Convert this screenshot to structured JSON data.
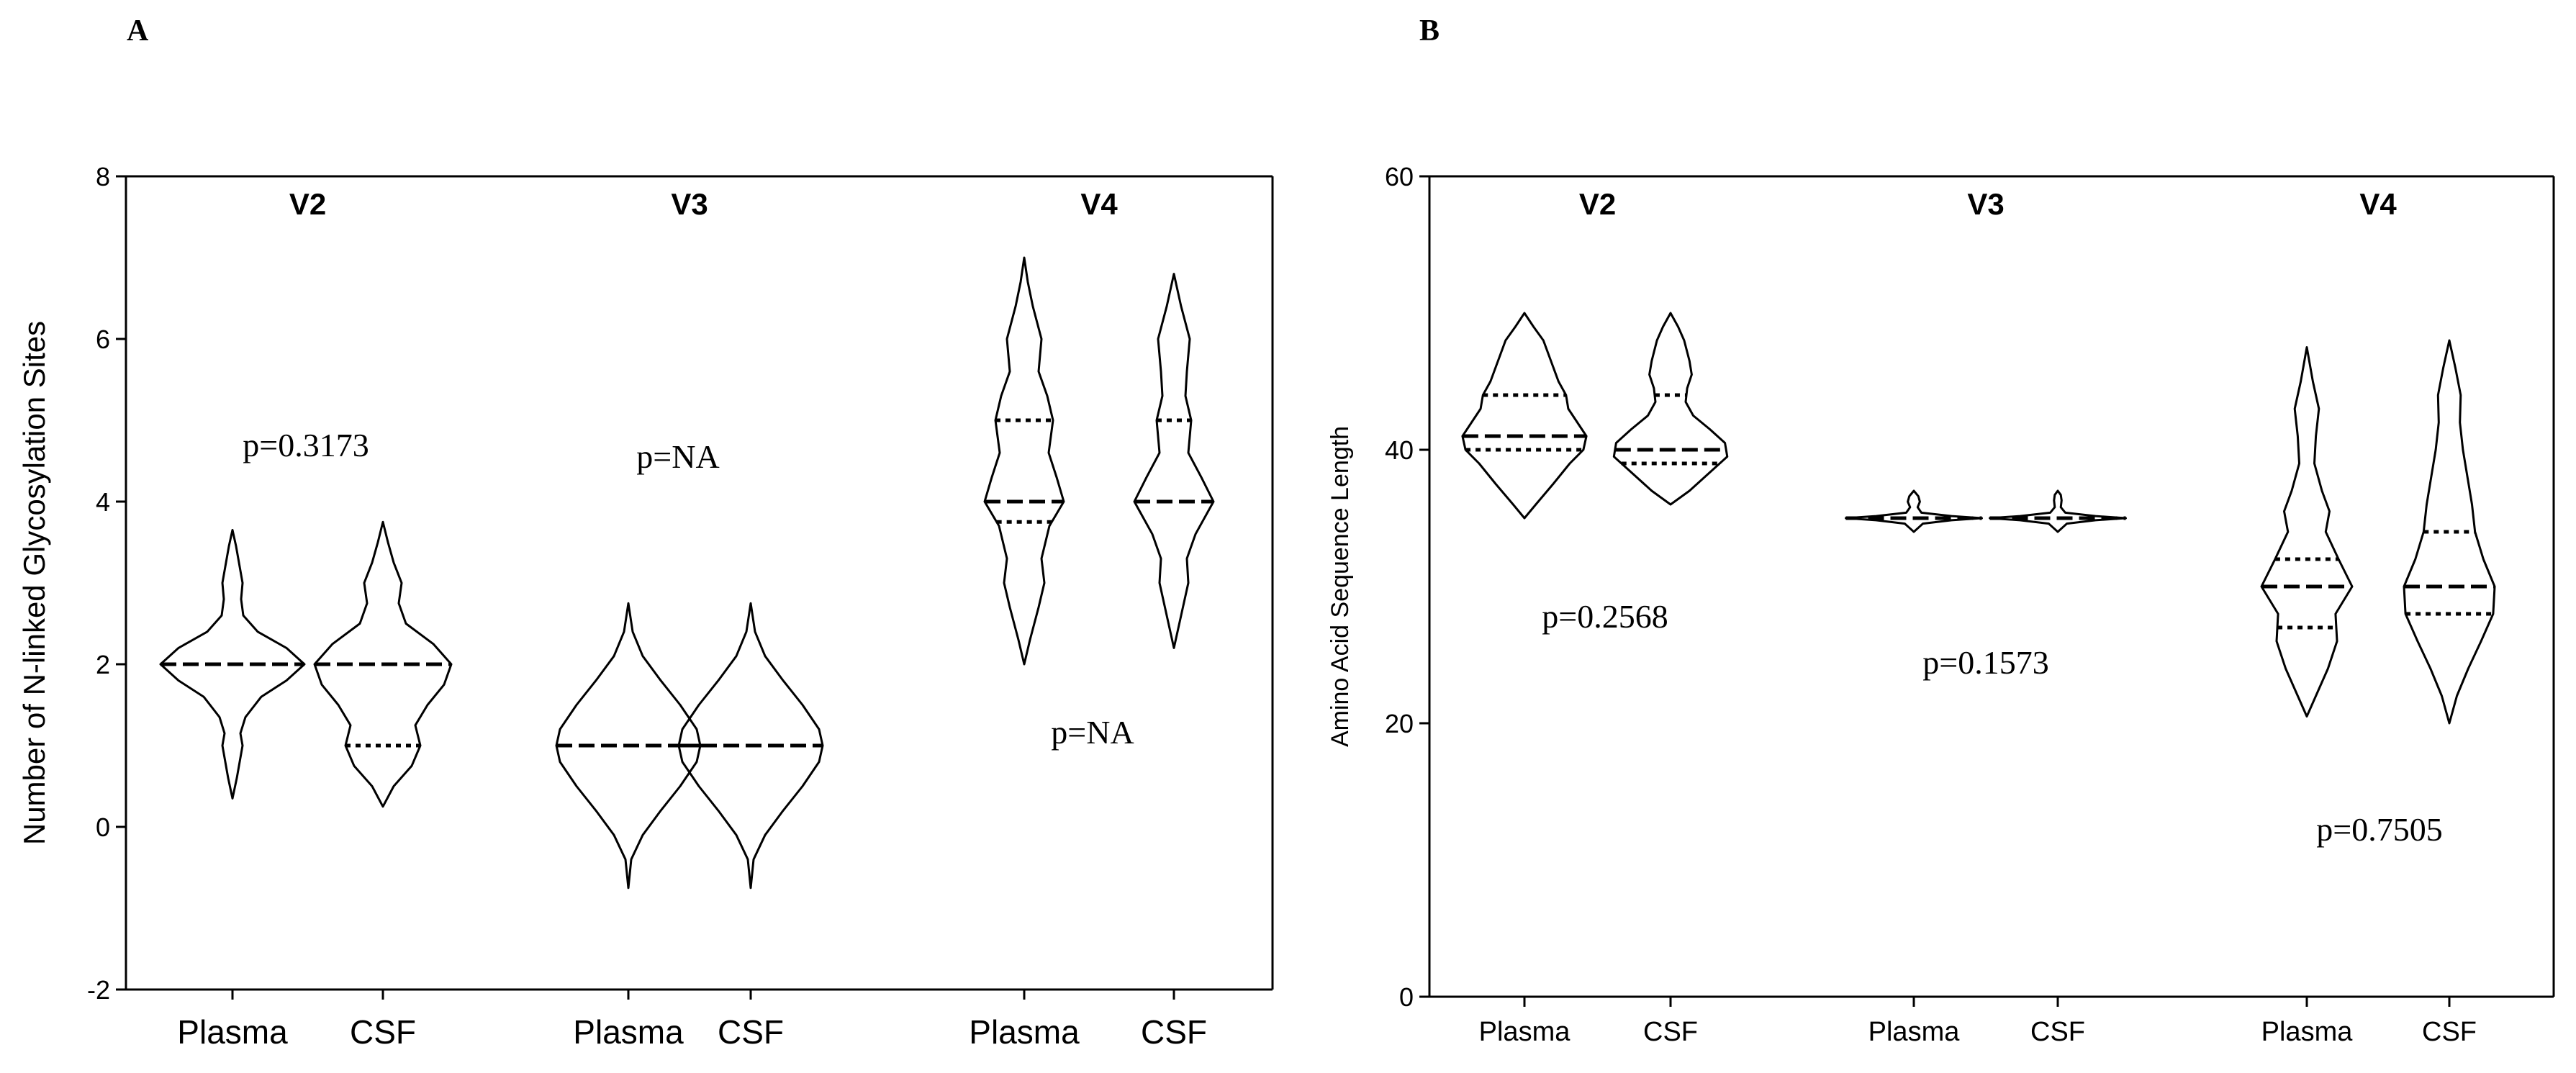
{
  "chart_data": [
    {
      "panel": "A",
      "type": "violin",
      "ylabel": "Number of N-linked Glycosylation Sites",
      "ylim": [
        -2,
        8
      ],
      "yticks": [
        -2,
        0,
        2,
        4,
        6,
        8
      ],
      "groups": [
        {
          "region": "V2",
          "pvalue": "p=0.3173",
          "series": [
            {
              "name": "Plasma",
              "min": 0.35,
              "max": 3.65,
              "median": 2,
              "q1": 2,
              "q3": 2,
              "density": [
                [
                  0.35,
                  0
                ],
                [
                  0.6,
                  0.06
                ],
                [
                  0.85,
                  0.11
                ],
                [
                  1,
                  0.14
                ],
                [
                  1.15,
                  0.11
                ],
                [
                  1.35,
                  0.18
                ],
                [
                  1.6,
                  0.4
                ],
                [
                  1.8,
                  0.75
                ],
                [
                  2,
                  1
                ],
                [
                  2.2,
                  0.75
                ],
                [
                  2.4,
                  0.35
                ],
                [
                  2.6,
                  0.15
                ],
                [
                  2.8,
                  0.12
                ],
                [
                  3,
                  0.14
                ],
                [
                  3.2,
                  0.1
                ],
                [
                  3.45,
                  0.05
                ],
                [
                  3.65,
                  0
                ]
              ]
            },
            {
              "name": "CSF",
              "min": 0.25,
              "max": 3.75,
              "median": 2,
              "q1": 1,
              "q3": 2,
              "density": [
                [
                  0.25,
                  0
                ],
                [
                  0.5,
                  0.15
                ],
                [
                  0.75,
                  0.4
                ],
                [
                  1,
                  0.52
                ],
                [
                  1.25,
                  0.45
                ],
                [
                  1.5,
                  0.62
                ],
                [
                  1.75,
                  0.85
                ],
                [
                  2,
                  0.95
                ],
                [
                  2.25,
                  0.7
                ],
                [
                  2.5,
                  0.32
                ],
                [
                  2.75,
                  0.22
                ],
                [
                  3,
                  0.26
                ],
                [
                  3.25,
                  0.15
                ],
                [
                  3.5,
                  0.07
                ],
                [
                  3.75,
                  0
                ]
              ]
            }
          ]
        },
        {
          "region": "V3",
          "pvalue": "p=NA",
          "series": [
            {
              "name": "Plasma",
              "min": -0.75,
              "max": 2.75,
              "median": 1,
              "q1": 1,
              "q3": 1,
              "density": [
                [
                  -0.75,
                  0
                ],
                [
                  -0.4,
                  0.04
                ],
                [
                  -0.1,
                  0.2
                ],
                [
                  0.2,
                  0.45
                ],
                [
                  0.5,
                  0.72
                ],
                [
                  0.8,
                  0.95
                ],
                [
                  1,
                  1
                ],
                [
                  1.2,
                  0.95
                ],
                [
                  1.5,
                  0.72
                ],
                [
                  1.8,
                  0.45
                ],
                [
                  2.1,
                  0.2
                ],
                [
                  2.4,
                  0.06
                ],
                [
                  2.75,
                  0
                ]
              ]
            },
            {
              "name": "CSF",
              "min": -0.75,
              "max": 2.75,
              "median": 1,
              "q1": 1,
              "q3": 1,
              "density": [
                [
                  -0.75,
                  0
                ],
                [
                  -0.4,
                  0.04
                ],
                [
                  -0.1,
                  0.2
                ],
                [
                  0.2,
                  0.45
                ],
                [
                  0.5,
                  0.72
                ],
                [
                  0.8,
                  0.95
                ],
                [
                  1,
                  1
                ],
                [
                  1.2,
                  0.95
                ],
                [
                  1.5,
                  0.72
                ],
                [
                  1.8,
                  0.45
                ],
                [
                  2.1,
                  0.2
                ],
                [
                  2.4,
                  0.06
                ],
                [
                  2.75,
                  0
                ]
              ]
            }
          ]
        },
        {
          "region": "V4",
          "pvalue": "p=NA",
          "series": [
            {
              "name": "Plasma",
              "min": 2,
              "max": 7,
              "median": 4,
              "q1": 3.75,
              "q3": 5,
              "density": [
                [
                  2,
                  0
                ],
                [
                  2.3,
                  0.08
                ],
                [
                  2.7,
                  0.2
                ],
                [
                  3.0,
                  0.28
                ],
                [
                  3.3,
                  0.24
                ],
                [
                  3.7,
                  0.35
                ],
                [
                  4,
                  0.55
                ],
                [
                  4.3,
                  0.45
                ],
                [
                  4.6,
                  0.34
                ],
                [
                  5,
                  0.4
                ],
                [
                  5.3,
                  0.32
                ],
                [
                  5.6,
                  0.2
                ],
                [
                  6,
                  0.24
                ],
                [
                  6.4,
                  0.12
                ],
                [
                  6.7,
                  0.05
                ],
                [
                  7,
                  0
                ]
              ]
            },
            {
              "name": "CSF",
              "min": 2.2,
              "max": 6.8,
              "median": 4,
              "q1": 4,
              "q3": 5,
              "density": [
                [
                  2.2,
                  0
                ],
                [
                  2.6,
                  0.1
                ],
                [
                  3.0,
                  0.2
                ],
                [
                  3.3,
                  0.18
                ],
                [
                  3.6,
                  0.3
                ],
                [
                  4,
                  0.55
                ],
                [
                  4.3,
                  0.38
                ],
                [
                  4.6,
                  0.2
                ],
                [
                  5,
                  0.24
                ],
                [
                  5.3,
                  0.16
                ],
                [
                  5.6,
                  0.18
                ],
                [
                  6,
                  0.22
                ],
                [
                  6.4,
                  0.1
                ],
                [
                  6.8,
                  0
                ]
              ]
            }
          ]
        }
      ]
    },
    {
      "panel": "B",
      "type": "violin",
      "ylabel": "Amino Acid Sequence Length",
      "ylim": [
        0,
        60
      ],
      "yticks": [
        0,
        20,
        40,
        60
      ],
      "groups": [
        {
          "region": "V2",
          "pvalue": "p=0.2568",
          "series": [
            {
              "name": "Plasma",
              "min": 35,
              "max": 50,
              "median": 41,
              "q1": 40,
              "q3": 44,
              "density": [
                [
                  35,
                  0
                ],
                [
                  36,
                  0.15
                ],
                [
                  37.5,
                  0.38
                ],
                [
                  39,
                  0.6
                ],
                [
                  40,
                  0.78
                ],
                [
                  41,
                  0.82
                ],
                [
                  42,
                  0.7
                ],
                [
                  43,
                  0.58
                ],
                [
                  44,
                  0.55
                ],
                [
                  45,
                  0.45
                ],
                [
                  46.5,
                  0.35
                ],
                [
                  48,
                  0.25
                ],
                [
                  49,
                  0.12
                ],
                [
                  50,
                  0
                ]
              ]
            },
            {
              "name": "CSF",
              "min": 36,
              "max": 50,
              "median": 40,
              "q1": 39,
              "q3": 44,
              "density": [
                [
                  36,
                  0
                ],
                [
                  37,
                  0.25
                ],
                [
                  38.5,
                  0.55
                ],
                [
                  39.5,
                  0.75
                ],
                [
                  40.5,
                  0.72
                ],
                [
                  41.5,
                  0.52
                ],
                [
                  42.5,
                  0.3
                ],
                [
                  43.5,
                  0.2
                ],
                [
                  44.5,
                  0.22
                ],
                [
                  45.5,
                  0.28
                ],
                [
                  46.5,
                  0.25
                ],
                [
                  48,
                  0.18
                ],
                [
                  49,
                  0.1
                ],
                [
                  50,
                  0
                ]
              ]
            }
          ]
        },
        {
          "region": "V3",
          "pvalue": "p=0.1573",
          "series": [
            {
              "name": "Plasma",
              "min": 34,
              "max": 37,
              "median": 35,
              "q1": 35,
              "q3": 35,
              "density": [
                [
                  34,
                  0
                ],
                [
                  34.3,
                  0.06
                ],
                [
                  34.6,
                  0.12
                ],
                [
                  34.85,
                  0.5
                ],
                [
                  35,
                  0.9
                ],
                [
                  35.15,
                  0.5
                ],
                [
                  35.4,
                  0.1
                ],
                [
                  35.8,
                  0.05
                ],
                [
                  36.2,
                  0.08
                ],
                [
                  36.6,
                  0.06
                ],
                [
                  37,
                  0
                ]
              ]
            },
            {
              "name": "CSF",
              "min": 34,
              "max": 37,
              "median": 35,
              "q1": 35,
              "q3": 35,
              "density": [
                [
                  34,
                  0
                ],
                [
                  34.3,
                  0.06
                ],
                [
                  34.6,
                  0.12
                ],
                [
                  34.85,
                  0.5
                ],
                [
                  35,
                  0.9
                ],
                [
                  35.15,
                  0.5
                ],
                [
                  35.4,
                  0.1
                ],
                [
                  35.8,
                  0.04
                ],
                [
                  36.3,
                  0.05
                ],
                [
                  36.7,
                  0.04
                ],
                [
                  37,
                  0
                ]
              ]
            }
          ]
        },
        {
          "region": "V4",
          "pvalue": "p=0.7505",
          "series": [
            {
              "name": "Plasma",
              "min": 20.5,
              "max": 47.5,
              "median": 30,
              "q1": 27,
              "q3": 32,
              "density": [
                [
                  20.5,
                  0
                ],
                [
                  22,
                  0.12
                ],
                [
                  24,
                  0.28
                ],
                [
                  26,
                  0.4
                ],
                [
                  28,
                  0.38
                ],
                [
                  30,
                  0.6
                ],
                [
                  32,
                  0.42
                ],
                [
                  34,
                  0.25
                ],
                [
                  35.5,
                  0.3
                ],
                [
                  37,
                  0.2
                ],
                [
                  39,
                  0.1
                ],
                [
                  41,
                  0.12
                ],
                [
                  43,
                  0.16
                ],
                [
                  45,
                  0.08
                ],
                [
                  47.5,
                  0
                ]
              ]
            },
            {
              "name": "CSF",
              "min": 20,
              "max": 48,
              "median": 30,
              "q1": 28,
              "q3": 34,
              "density": [
                [
                  20,
                  0
                ],
                [
                  22,
                  0.1
                ],
                [
                  24,
                  0.25
                ],
                [
                  26,
                  0.42
                ],
                [
                  28,
                  0.58
                ],
                [
                  30,
                  0.6
                ],
                [
                  32,
                  0.45
                ],
                [
                  34,
                  0.34
                ],
                [
                  36,
                  0.3
                ],
                [
                  38,
                  0.24
                ],
                [
                  40,
                  0.18
                ],
                [
                  42,
                  0.14
                ],
                [
                  44,
                  0.15
                ],
                [
                  46,
                  0.08
                ],
                [
                  48,
                  0
                ]
              ]
            }
          ]
        }
      ]
    }
  ]
}
